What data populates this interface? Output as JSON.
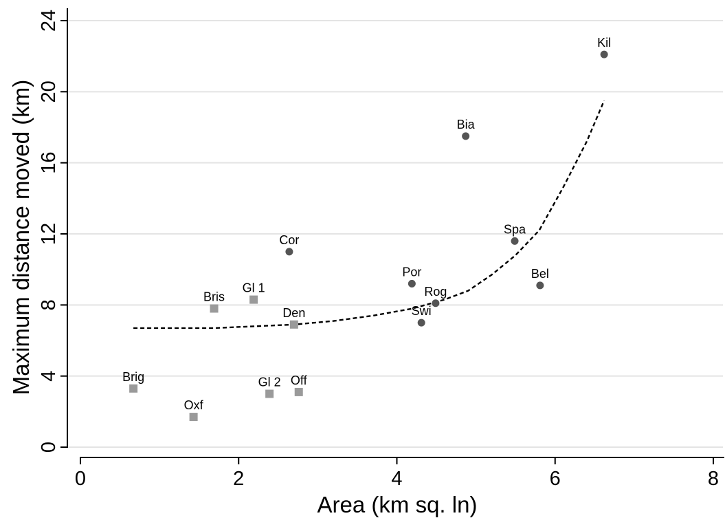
{
  "chart_data": {
    "type": "scatter",
    "xlabel": "Area (km sq. ln)",
    "ylabel": "Maximum distance moved (km)",
    "xlim": [
      0,
      8
    ],
    "ylim": [
      0,
      24
    ],
    "x_ticks": [
      "0",
      "2",
      "4",
      "6",
      "8"
    ],
    "y_ticks": [
      "0",
      "4",
      "8",
      "12",
      "16",
      "20",
      "24"
    ],
    "grid": "horizontal",
    "legend": "none",
    "colors": {
      "circle": "#555555",
      "square": "#9a9a9a",
      "fit": "#000000"
    },
    "series": [
      {
        "marker": "circle",
        "points": [
          {
            "label": "Kil",
            "x": 6.62,
            "y": 22.1
          },
          {
            "label": "Bia",
            "x": 4.87,
            "y": 17.5
          },
          {
            "label": "Spa",
            "x": 5.49,
            "y": 11.6
          },
          {
            "label": "Cor",
            "x": 2.64,
            "y": 11.0
          },
          {
            "label": "Bel",
            "x": 5.81,
            "y": 9.1
          },
          {
            "label": "Por",
            "x": 4.19,
            "y": 9.2
          },
          {
            "label": "Rog",
            "x": 4.49,
            "y": 8.1
          },
          {
            "label": "Swi",
            "x": 4.31,
            "y": 7.0
          }
        ]
      },
      {
        "marker": "square",
        "points": [
          {
            "label": "Gl 1",
            "x": 2.19,
            "y": 8.3
          },
          {
            "label": "Bris",
            "x": 1.69,
            "y": 7.8
          },
          {
            "label": "Den",
            "x": 2.7,
            "y": 6.9
          },
          {
            "label": "Brig",
            "x": 0.67,
            "y": 3.3
          },
          {
            "label": "Gl 2",
            "x": 2.39,
            "y": 3.0
          },
          {
            "label": "Off",
            "x": 2.76,
            "y": 3.1
          },
          {
            "label": "Oxf",
            "x": 1.43,
            "y": 1.7
          }
        ]
      }
    ],
    "fit_line": {
      "style": "dashed",
      "points": [
        [
          0.67,
          6.7
        ],
        [
          1.2,
          6.7
        ],
        [
          1.7,
          6.7
        ],
        [
          2.2,
          6.8
        ],
        [
          2.7,
          6.9
        ],
        [
          3.2,
          7.1
        ],
        [
          3.7,
          7.4
        ],
        [
          4.2,
          7.8
        ],
        [
          4.6,
          8.3
        ],
        [
          4.9,
          8.8
        ],
        [
          5.2,
          9.7
        ],
        [
          5.5,
          10.8
        ],
        [
          5.8,
          12.2
        ],
        [
          6.1,
          14.6
        ],
        [
          6.4,
          17.2
        ],
        [
          6.62,
          19.5
        ]
      ]
    }
  }
}
